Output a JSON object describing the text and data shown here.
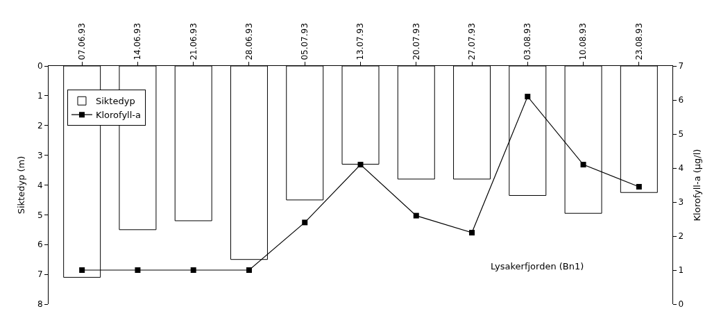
{
  "chart_data": {
    "type": "bar",
    "categories": [
      "07.06.93",
      "14.06.93",
      "21.06.93",
      "28.06.93",
      "05.07.93",
      "13.07.93",
      "20.07.93",
      "27.07.93",
      "03.08.93",
      "10.08.93",
      "23.08.93"
    ],
    "series": [
      {
        "name": "Siktedyp",
        "color": "#ffffff",
        "values": [
          7.1,
          5.5,
          5.2,
          6.5,
          4.5,
          3.3,
          3.8,
          3.8,
          4.35,
          4.95,
          4.25
        ]
      },
      {
        "name": "Klorofyll-a",
        "type": "line",
        "axis": "y2",
        "color": "#000000",
        "marker": "square",
        "values": [
          1,
          1,
          1,
          1,
          2.4,
          4.1,
          2.6,
          2.1,
          6.1,
          4.1,
          3.45
        ]
      }
    ],
    "ylabel": "Siktedyp (m)",
    "y2label": "Klorofyll-a (µg/l)",
    "ylim": [
      8,
      0
    ],
    "yticks": [
      0,
      1,
      2,
      3,
      4,
      5,
      6,
      7,
      8
    ],
    "y2lim": [
      0,
      7
    ],
    "y2ticks": [
      0,
      1,
      2,
      3,
      4,
      5,
      6,
      7
    ],
    "annotations": [
      "Lysakerfjorden (Bn1)"
    ],
    "legend": "top left",
    "grid": false
  }
}
